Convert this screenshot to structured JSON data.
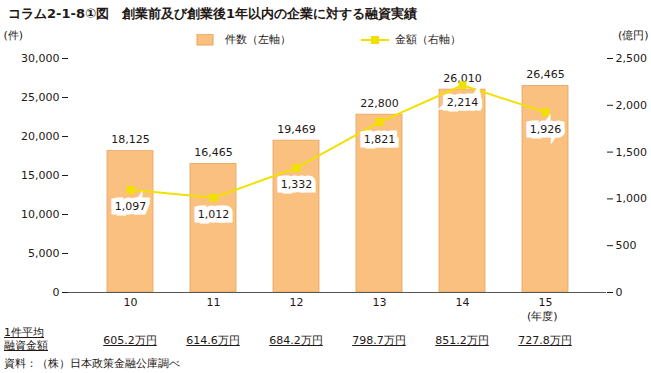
{
  "chart_data": {
    "type": "bar",
    "title": "コラム2-1-8①図　創業前及び創業後1年以内の企業に対する融資実績",
    "categories": [
      "10",
      "11",
      "12",
      "13",
      "14",
      "15"
    ],
    "xlabel": "(年度)",
    "ylabel": "(件)",
    "y2label": "(億円)",
    "ylim": [
      0,
      30000
    ],
    "yticks": [
      0,
      {
        "value": 5000,
        "label": "5,000"
      },
      {
        "value": 10000,
        "label": "10,000"
      },
      {
        "value": 15000,
        "label": "15,000"
      },
      {
        "value": 20000,
        "label": "20,000"
      },
      {
        "value": 25000,
        "label": "25,000"
      },
      {
        "value": 30000,
        "label": "30,000"
      }
    ],
    "y2lim": [
      0,
      2500
    ],
    "y2ticks": [
      0,
      500,
      {
        "value": 1000,
        "label": "1,000"
      },
      {
        "value": 1500,
        "label": "1,500"
      },
      {
        "value": 2000,
        "label": "2,000"
      },
      {
        "value": 2500,
        "label": "2,500"
      }
    ],
    "grid": false,
    "data_labels": true,
    "legend": "top",
    "series": [
      {
        "name": "件数（左軸）",
        "type": "bar",
        "color": "#f9c07f",
        "values": [
          18125,
          16465,
          19469,
          22800,
          26010,
          26465
        ],
        "value_labels": [
          "18,125",
          "16,465",
          "19,469",
          "22,800",
          "26,010",
          "26,465"
        ]
      },
      {
        "name": "金額（右軸）",
        "type": "line",
        "axis": "y2",
        "color": "#f2e100",
        "marker": "square",
        "values": [
          1097,
          1012,
          1332,
          1821,
          2214,
          1926
        ],
        "value_labels": [
          "1,097",
          "1,012",
          "1,332",
          "1,821",
          "2,214",
          "1,926"
        ]
      }
    ],
    "footer_row": {
      "label": "1件平均\n融資金額",
      "values": [
        "605.2万円",
        "614.6万円",
        "684.2万円",
        "798.7万円",
        "851.2万円",
        "727.8万円"
      ]
    },
    "source": "資料：（株）日本政策金融公庫調べ"
  }
}
